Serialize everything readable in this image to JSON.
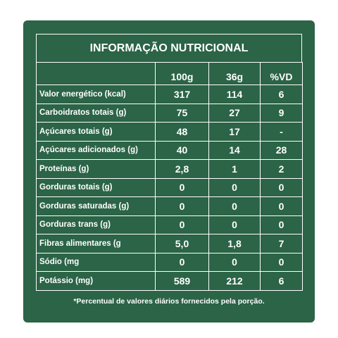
{
  "title": "INFORMAÇÃO NUTRICIONAL",
  "headers": [
    "",
    "100g",
    "36g",
    "%VD"
  ],
  "rows": [
    {
      "label": "Valor energético (kcal)",
      "v100g": "317",
      "v36g": "114",
      "vd": "6"
    },
    {
      "label": "Carboidratos totais (g)",
      "v100g": "75",
      "v36g": "27",
      "vd": "9"
    },
    {
      "label": "Açúcares totais (g)",
      "v100g": "48",
      "v36g": "17",
      "vd": "-"
    },
    {
      "label": "Açúcares adicionados (g)",
      "v100g": "40",
      "v36g": "14",
      "vd": "28"
    },
    {
      "label": "Proteínas (g)",
      "v100g": "2,8",
      "v36g": "1",
      "vd": "2"
    },
    {
      "label": "Gorduras totais (g)",
      "v100g": "0",
      "v36g": "0",
      "vd": "0"
    },
    {
      "label": "Gorduras saturadas (g)",
      "v100g": "0",
      "v36g": "0",
      "vd": "0"
    },
    {
      "label": "Gorduras trans (g)",
      "v100g": "0",
      "v36g": "0",
      "vd": "0"
    },
    {
      "label": "Fibras alimentares (g",
      "v100g": "5,0",
      "v36g": "1,8",
      "vd": "7"
    },
    {
      "label": "Sódio (mg",
      "v100g": "0",
      "v36g": "0",
      "vd": "0"
    },
    {
      "label": "Potássio (mg)",
      "v100g": "589",
      "v36g": "212",
      "vd": "6"
    }
  ],
  "footnote": "*Percentual de valores diários fornecidos pela porção.",
  "colors": {
    "panel": "#2b6446",
    "text": "#ffffff"
  }
}
